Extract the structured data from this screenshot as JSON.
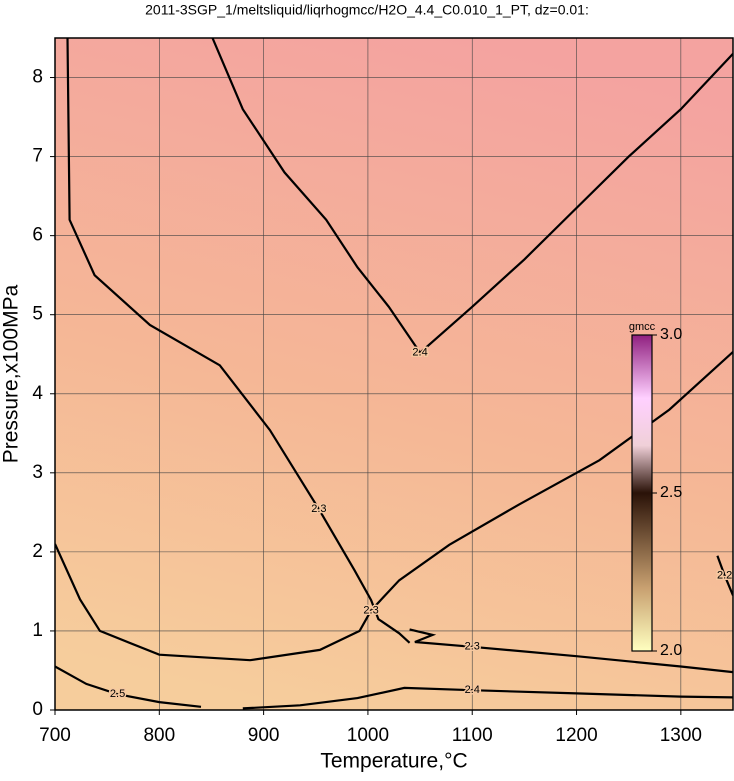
{
  "chart_data": {
    "type": "contour",
    "title": "2011-3SGP_1/meltsliquid/liqrhogmcc/H2O_4.4_C0.010_1_PT, dz=0.01:",
    "x_label": "Temperature,°C",
    "y_label": "Pressure,x100MPa",
    "xlim": [
      700,
      1350
    ],
    "ylim": [
      0,
      8.5
    ],
    "xticks": [
      700,
      800,
      900,
      1000,
      1100,
      1200,
      1300
    ],
    "yticks": [
      0,
      1,
      2,
      3,
      4,
      5,
      6,
      7,
      8
    ],
    "grid": true,
    "contours": [
      {
        "level": 2.4,
        "x": [
          851,
          880,
          920,
          960,
          990,
          1020,
          1050,
          1100,
          1150,
          1200,
          1250,
          1300,
          1350
        ],
        "y": [
          8.5,
          7.6,
          6.8,
          6.2,
          5.6,
          5.1,
          4.52,
          5.1,
          5.7,
          6.35,
          7.0,
          7.6,
          8.3
        ]
      },
      {
        "level": 2.3,
        "x": [
          712,
          714,
          738,
          791,
          858,
          906,
          953,
          987,
          1003,
          1010,
          1030,
          1040
        ],
        "y": [
          8.5,
          6.2,
          5.5,
          4.87,
          4.36,
          3.54,
          2.54,
          1.77,
          1.39,
          1.15,
          0.97,
          0.85
        ]
      },
      {
        "level": 2.3,
        "x": [
          700,
          724,
          743,
          800,
          887,
          954,
          992,
          1003,
          1030,
          1078,
          1145,
          1222,
          1289,
          1350
        ],
        "y": [
          2.1,
          1.4,
          1.0,
          0.7,
          0.63,
          0.76,
          1.0,
          1.26,
          1.64,
          2.09,
          2.6,
          3.16,
          3.8,
          4.53
        ]
      },
      {
        "level": 2.3,
        "x": [
          1040,
          1062,
          1045,
          1100,
          1200,
          1300,
          1350
        ],
        "y": [
          1.02,
          0.95,
          0.86,
          0.8,
          0.68,
          0.55,
          0.48
        ]
      },
      {
        "level": 2.4,
        "x": [
          880,
          935,
          990,
          1035,
          1100,
          1200,
          1300,
          1350
        ],
        "y": [
          0.02,
          0.06,
          0.15,
          0.28,
          0.25,
          0.21,
          0.17,
          0.16
        ]
      },
      {
        "level": 2.5,
        "x": [
          700,
          730,
          760,
          800,
          840
        ],
        "y": [
          0.55,
          0.33,
          0.2,
          0.1,
          0.04
        ]
      },
      {
        "level": 2.2,
        "x": [
          1335,
          1342,
          1350
        ],
        "y": [
          1.95,
          1.7,
          1.45
        ]
      }
    ],
    "colorbar": {
      "label": "gmcc",
      "lim": [
        2,
        3
      ],
      "ticks": [
        {
          "value": 2,
          "label": "2.0"
        },
        {
          "value": 2.5,
          "label": "2.5"
        },
        {
          "value": 3,
          "label": "3.0"
        }
      ]
    }
  }
}
